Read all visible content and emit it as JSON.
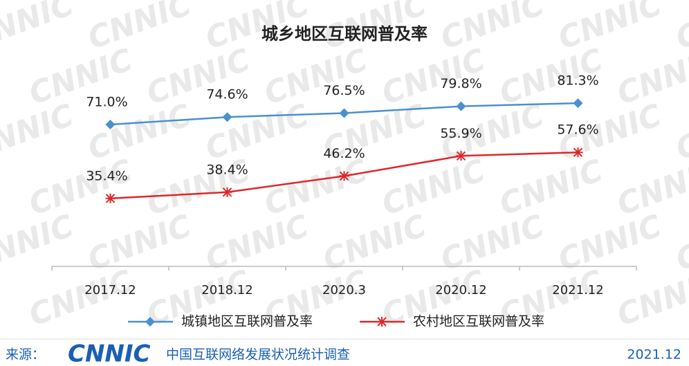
{
  "chart_data": {
    "type": "line",
    "title": "城乡地区互联网普及率",
    "categories": [
      "2017.12",
      "2018.12",
      "2020.3",
      "2020.12",
      "2021.12"
    ],
    "series": [
      {
        "name": "城镇地区互联网普及率",
        "color": "#4a90d0",
        "marker": "diamond",
        "values": [
          71.0,
          74.6,
          76.5,
          79.8,
          81.3
        ],
        "value_labels": [
          "71.0%",
          "74.6%",
          "76.5%",
          "79.8%",
          "81.3%"
        ]
      },
      {
        "name": "农村地区互联网普及率",
        "color": "#e0262b",
        "marker": "star",
        "values": [
          35.4,
          38.4,
          46.2,
          55.9,
          57.6
        ],
        "value_labels": [
          "35.4%",
          "38.4%",
          "46.2%",
          "55.9%",
          "57.6%"
        ]
      }
    ],
    "ylim": [
      0,
      100
    ],
    "watermark": "CNNIC"
  },
  "footer": {
    "source_label": "来源：",
    "logo": "CNNIC",
    "source": "中国互联网络发展状况统计调查",
    "date": "2021.12"
  }
}
